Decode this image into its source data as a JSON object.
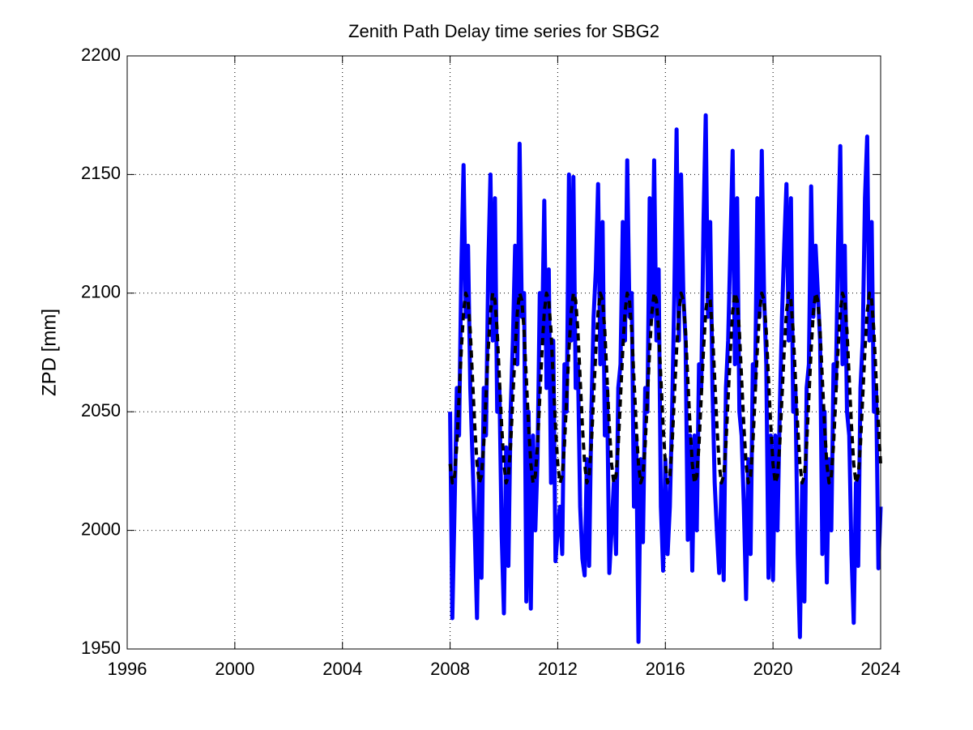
{
  "chart_data": {
    "type": "line",
    "title": "Zenith Path Delay time series for SBG2",
    "ylabel": "ZPD [mm]",
    "xlim": [
      1996,
      2024
    ],
    "xticks": [
      1996,
      2000,
      2004,
      2008,
      2012,
      2016,
      2020,
      2024
    ],
    "ylim": [
      1950,
      2200
    ],
    "yticks": [
      1950,
      2000,
      2050,
      2100,
      2150,
      2200
    ],
    "grid": true,
    "x": [
      2008,
      2008.083,
      2008.167,
      2008.25,
      2008.333,
      2008.417,
      2008.5,
      2008.583,
      2008.667,
      2008.75,
      2008.833,
      2008.917,
      2009,
      2009.083,
      2009.167,
      2009.25,
      2009.333,
      2009.417,
      2009.5,
      2009.583,
      2009.667,
      2009.75,
      2009.833,
      2009.917,
      2010,
      2010.083,
      2010.167,
      2010.25,
      2010.333,
      2010.417,
      2010.5,
      2010.583,
      2010.667,
      2010.75,
      2010.833,
      2010.917,
      2011,
      2011.083,
      2011.167,
      2011.25,
      2011.333,
      2011.417,
      2011.5,
      2011.583,
      2011.667,
      2011.75,
      2011.833,
      2011.917,
      2012,
      2012.083,
      2012.167,
      2012.25,
      2012.333,
      2012.417,
      2012.5,
      2012.583,
      2012.667,
      2012.75,
      2012.833,
      2012.917,
      2013,
      2013.083,
      2013.167,
      2013.25,
      2013.333,
      2013.417,
      2013.5,
      2013.583,
      2013.667,
      2013.75,
      2013.833,
      2013.917,
      2014,
      2014.083,
      2014.167,
      2014.25,
      2014.333,
      2014.417,
      2014.5,
      2014.583,
      2014.667,
      2014.75,
      2014.833,
      2014.917,
      2015,
      2015.083,
      2015.167,
      2015.25,
      2015.333,
      2015.417,
      2015.5,
      2015.583,
      2015.667,
      2015.75,
      2015.833,
      2015.917,
      2016,
      2016.083,
      2016.167,
      2016.25,
      2016.333,
      2016.417,
      2016.5,
      2016.583,
      2016.667,
      2016.75,
      2016.833,
      2016.917,
      2017,
      2017.083,
      2017.167,
      2017.25,
      2017.333,
      2017.417,
      2017.5,
      2017.583,
      2017.667,
      2017.75,
      2017.833,
      2017.917,
      2018,
      2018.083,
      2018.167,
      2018.25,
      2018.333,
      2018.417,
      2018.5,
      2018.583,
      2018.667,
      2018.75,
      2018.833,
      2018.917,
      2019,
      2019.083,
      2019.167,
      2019.25,
      2019.333,
      2019.417,
      2019.5,
      2019.583,
      2019.667,
      2019.75,
      2019.833,
      2019.917,
      2020,
      2020.083,
      2020.167,
      2020.25,
      2020.333,
      2020.417,
      2020.5,
      2020.583,
      2020.667,
      2020.75,
      2020.833,
      2020.917,
      2021,
      2021.083,
      2021.167,
      2021.25,
      2021.333,
      2021.417,
      2021.5,
      2021.583,
      2021.667,
      2021.75,
      2021.833,
      2021.917,
      2022,
      2022.083,
      2022.167,
      2022.25,
      2022.333,
      2022.417,
      2022.5,
      2022.583,
      2022.667,
      2022.75,
      2022.833,
      2022.917,
      2023,
      2023.083,
      2023.167,
      2023.25,
      2023.333,
      2023.417,
      2023.5,
      2023.583,
      2023.667,
      2023.75,
      2023.833,
      2023.917,
      2024
    ],
    "series": [
      {
        "color": "#0000ff",
        "width": 5,
        "dashed": false,
        "values": [
          2050,
          1963,
          2010,
          2060,
          2040,
          2110,
          2154,
          2090,
          2120,
          2060,
          2030,
          2000,
          1963,
          2030,
          1980,
          2060,
          2040,
          2110,
          2150,
          2080,
          2140,
          2050,
          2060,
          1998,
          1965,
          2035,
          1985,
          2050,
          2080,
          2120,
          2070,
          2163,
          2090,
          2100,
          1970,
          2050,
          1967,
          2040,
          2000,
          2030,
          2100,
          2080,
          2139,
          2060,
          2110,
          2020,
          2080,
          1987,
          2000,
          2010,
          1990,
          2070,
          2050,
          2150,
          2080,
          2149,
          2060,
          2070,
          2010,
          1988,
          1981,
          2030,
          1985,
          2050,
          2090,
          2110,
          2146,
          2070,
          2130,
          2040,
          2060,
          1982,
          2000,
          2020,
          1990,
          2060,
          2070,
          2130,
          2080,
          2156,
          2090,
          2100,
          2010,
          2040,
          1953,
          2030,
          1995,
          2060,
          2050,
          2140,
          2090,
          2156,
          2080,
          2110,
          2010,
          1983,
          2030,
          1990,
          2010,
          2050,
          2100,
          2169,
          2080,
          2150,
          2100,
          2080,
          1996,
          2040,
          1983,
          2040,
          2000,
          2070,
          2060,
          2130,
          2175,
          2090,
          2130,
          2060,
          2020,
          1999,
          1982,
          2020,
          1979,
          2060,
          2080,
          2120,
          2160,
          2070,
          2140,
          2050,
          2040,
          2010,
          1971,
          2030,
          1990,
          2070,
          2060,
          2140,
          2090,
          2160,
          2100,
          2070,
          1980,
          2040,
          1979,
          2040,
          2000,
          2050,
          2090,
          2120,
          2146,
          2080,
          2140,
          2050,
          2060,
          1990,
          1955,
          2020,
          1970,
          2060,
          2070,
          2145,
          2090,
          2120,
          2100,
          2080,
          1990,
          2050,
          1978,
          2030,
          2000,
          2070,
          2060,
          2120,
          2162,
          2070,
          2120,
          2050,
          2040,
          1990,
          1961,
          2020,
          1985,
          2060,
          2080,
          2140,
          2166,
          2080,
          2130,
          2050,
          2060,
          1984,
          2010
        ]
      },
      {
        "color": "#000000",
        "width": 4,
        "dashed": true,
        "values": [
          2028,
          2020,
          2023,
          2036,
          2056,
          2076,
          2092,
          2100,
          2097,
          2084,
          2064,
          2044,
          2028,
          2020,
          2023,
          2036,
          2056,
          2076,
          2092,
          2100,
          2097,
          2084,
          2064,
          2044,
          2028,
          2020,
          2023,
          2036,
          2056,
          2076,
          2092,
          2100,
          2097,
          2084,
          2064,
          2044,
          2028,
          2020,
          2023,
          2036,
          2056,
          2076,
          2092,
          2100,
          2097,
          2084,
          2064,
          2044,
          2028,
          2020,
          2023,
          2036,
          2056,
          2076,
          2092,
          2100,
          2097,
          2084,
          2064,
          2044,
          2028,
          2020,
          2023,
          2036,
          2056,
          2076,
          2092,
          2100,
          2097,
          2084,
          2064,
          2044,
          2028,
          2020,
          2023,
          2036,
          2056,
          2076,
          2092,
          2100,
          2097,
          2084,
          2064,
          2044,
          2028,
          2020,
          2023,
          2036,
          2056,
          2076,
          2092,
          2100,
          2097,
          2084,
          2064,
          2044,
          2028,
          2020,
          2023,
          2036,
          2056,
          2076,
          2092,
          2100,
          2097,
          2084,
          2064,
          2044,
          2028,
          2020,
          2023,
          2036,
          2056,
          2076,
          2092,
          2100,
          2097,
          2084,
          2064,
          2044,
          2028,
          2020,
          2023,
          2036,
          2056,
          2076,
          2092,
          2100,
          2097,
          2084,
          2064,
          2044,
          2028,
          2020,
          2023,
          2036,
          2056,
          2076,
          2092,
          2100,
          2097,
          2084,
          2064,
          2044,
          2028,
          2020,
          2023,
          2036,
          2056,
          2076,
          2092,
          2100,
          2097,
          2084,
          2064,
          2044,
          2028,
          2020,
          2023,
          2036,
          2056,
          2076,
          2092,
          2100,
          2097,
          2084,
          2064,
          2044,
          2028,
          2020,
          2023,
          2036,
          2056,
          2076,
          2092,
          2100,
          2097,
          2084,
          2064,
          2044,
          2028,
          2020,
          2023,
          2036,
          2056,
          2076,
          2092,
          2100,
          2097,
          2084,
          2064,
          2044,
          2028
        ]
      }
    ]
  }
}
